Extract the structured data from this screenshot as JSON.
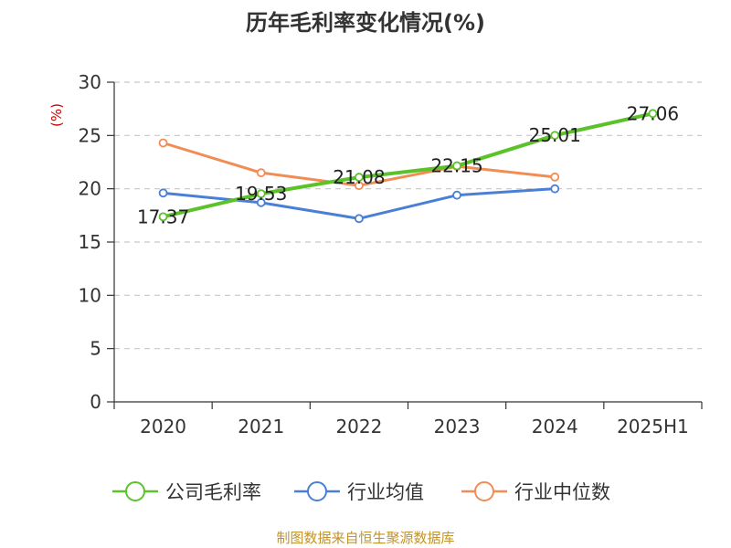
{
  "chart_data": {
    "type": "line",
    "title": "历年毛利率变化情况(%)",
    "ylabel": "(%)",
    "xlabel": "",
    "categories": [
      "2020",
      "2021",
      "2022",
      "2023",
      "2024",
      "2025H1"
    ],
    "ylim": [
      0,
      30
    ],
    "yticks": [
      0,
      5,
      10,
      15,
      20,
      25,
      30
    ],
    "grid": "horizontal dashed",
    "legend_position": "bottom",
    "series": [
      {
        "name": "公司毛利率",
        "color": "#5cc22a",
        "values": [
          17.37,
          19.53,
          21.08,
          22.15,
          25.01,
          27.06
        ],
        "labels": [
          "17.37",
          "19.53",
          "21.08",
          "22.15",
          "25.01",
          "27.06"
        ]
      },
      {
        "name": "行业均值",
        "color": "#4a7fd6",
        "values": [
          19.6,
          18.7,
          17.2,
          19.4,
          20.0,
          null
        ]
      },
      {
        "name": "行业中位数",
        "color": "#f28c55",
        "values": [
          24.3,
          21.5,
          20.3,
          22.1,
          21.1,
          null
        ]
      }
    ]
  },
  "source_note": "制图数据来自恒生聚源数据库"
}
